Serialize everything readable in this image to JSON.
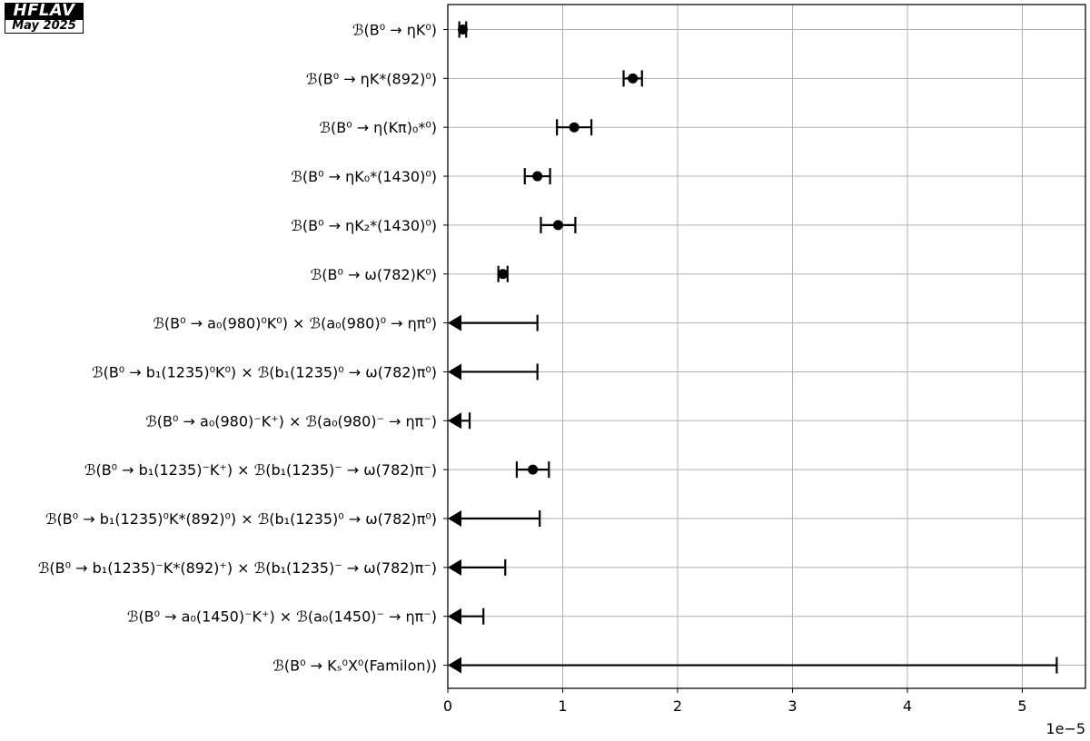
{
  "logo": {
    "top": "HFLAV",
    "bottom": "May 2025"
  },
  "colors": {
    "marker": "#000000",
    "grid": "#b0b0b0",
    "axes": "#000000",
    "background": "#ffffff"
  },
  "chart_data": {
    "type": "scatter",
    "orientation": "horizontal",
    "xlim": [
      0,
      5.55
    ],
    "x_ticks": [
      0,
      1,
      2,
      3,
      4,
      5
    ],
    "x_tick_labels": [
      "0",
      "1",
      "2",
      "3",
      "4",
      "5"
    ],
    "x_scale_label": "1e−5",
    "grid": true,
    "entries": [
      {
        "label": "ℬ(B⁰ → ηK⁰)",
        "kind": "measurement",
        "value": 0.13,
        "low": 0.1,
        "high": 0.16
      },
      {
        "label": "ℬ(B⁰ → ηK*(892)⁰)",
        "kind": "measurement",
        "value": 1.61,
        "low": 1.53,
        "high": 1.69
      },
      {
        "label": "ℬ(B⁰ → η(Kπ)₀*⁰)",
        "kind": "measurement",
        "value": 1.1,
        "low": 0.95,
        "high": 1.25
      },
      {
        "label": "ℬ(B⁰ → ηK₀*(1430)⁰)",
        "kind": "measurement",
        "value": 0.78,
        "low": 0.67,
        "high": 0.89
      },
      {
        "label": "ℬ(B⁰ → ηK₂*(1430)⁰)",
        "kind": "measurement",
        "value": 0.96,
        "low": 0.81,
        "high": 1.11
      },
      {
        "label": "ℬ(B⁰ → ω(782)K⁰)",
        "kind": "measurement",
        "value": 0.48,
        "low": 0.44,
        "high": 0.52
      },
      {
        "label": "ℬ(B⁰ → a₀(980)⁰K⁰) × ℬ(a₀(980)⁰ → ηπ⁰)",
        "kind": "upper_limit",
        "limit": 0.78
      },
      {
        "label": "ℬ(B⁰ → b₁(1235)⁰K⁰) × ℬ(b₁(1235)⁰ → ω(782)π⁰)",
        "kind": "upper_limit",
        "limit": 0.78
      },
      {
        "label": "ℬ(B⁰ → a₀(980)⁻K⁺) × ℬ(a₀(980)⁻ → ηπ⁻)",
        "kind": "upper_limit",
        "limit": 0.19
      },
      {
        "label": "ℬ(B⁰ → b₁(1235)⁻K⁺) × ℬ(b₁(1235)⁻ → ω(782)π⁻)",
        "kind": "measurement",
        "value": 0.74,
        "low": 0.6,
        "high": 0.88
      },
      {
        "label": "ℬ(B⁰ → b₁(1235)⁰K*(892)⁰) × ℬ(b₁(1235)⁰ → ω(782)π⁰)",
        "kind": "upper_limit",
        "limit": 0.8
      },
      {
        "label": "ℬ(B⁰ → b₁(1235)⁻K*(892)⁺) × ℬ(b₁(1235)⁻ → ω(782)π⁻)",
        "kind": "upper_limit",
        "limit": 0.5
      },
      {
        "label": "ℬ(B⁰ → a₀(1450)⁻K⁺) × ℬ(a₀(1450)⁻ → ηπ⁻)",
        "kind": "upper_limit",
        "limit": 0.31
      },
      {
        "label": "ℬ(B⁰ → Kₛ⁰X⁰(Familon))",
        "kind": "upper_limit",
        "limit": 5.3
      }
    ]
  }
}
